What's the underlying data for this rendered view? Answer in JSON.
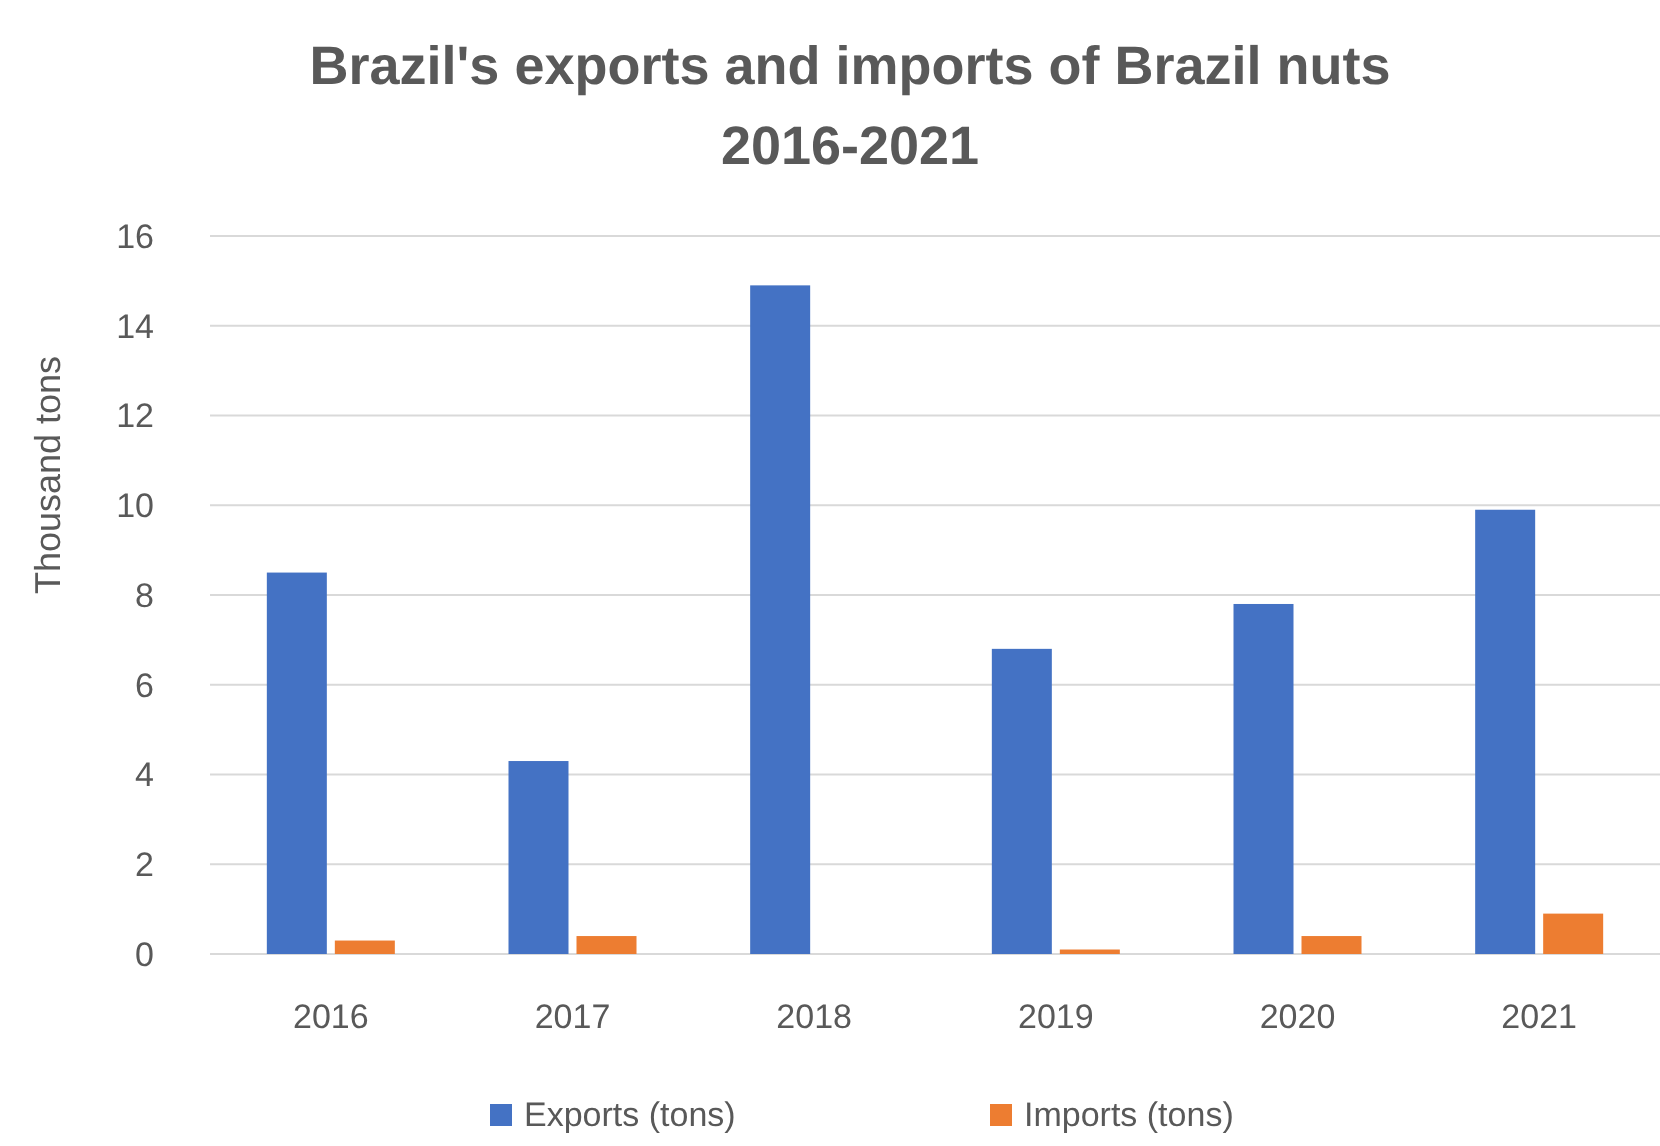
{
  "chart_data": {
    "type": "bar",
    "title": "Brazil's exports and imports of Brazil nuts 2016-2021",
    "ylabel": "Thousand tons",
    "categories": [
      "2016",
      "2017",
      "2018",
      "2019",
      "2020",
      "2021"
    ],
    "series": [
      {
        "name": "Exports (tons)",
        "color": "#4472c4",
        "values": [
          8.5,
          4.3,
          14.9,
          6.8,
          7.8,
          9.9
        ]
      },
      {
        "name": "Imports (tons)",
        "color": "#ed7d31",
        "values": [
          0.3,
          0.4,
          0,
          0.1,
          0.4,
          0.9
        ]
      }
    ],
    "ylim": [
      0,
      16
    ],
    "yticks": [
      0,
      2,
      4,
      6,
      8,
      10,
      12,
      14,
      16
    ],
    "grid": "y",
    "legend": "bottom"
  }
}
